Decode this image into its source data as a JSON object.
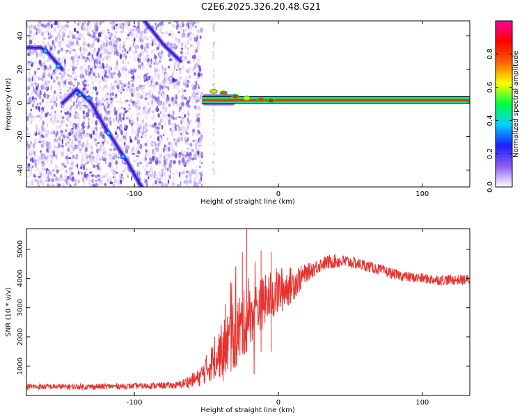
{
  "title": "C2E6.2025.326.20.48.G21",
  "colors": {
    "line": "#e8322f",
    "ridge": "#2c1fd9",
    "spectrum_bg": "#8a5cf0"
  },
  "chart_data": [
    {
      "type": "heatmap",
      "name": "spectrogram",
      "xlabel": "Height of straight line (km)",
      "ylabel": "Frequency (Hz)",
      "xlim": [
        -175,
        133
      ],
      "ylim": [
        -50,
        49
      ],
      "xticks": [
        -100,
        0,
        100
      ],
      "xtick_labels": [
        "-100",
        "0",
        "100"
      ],
      "yticks": [
        -40,
        -20,
        0,
        20,
        40
      ],
      "ytick_labels": [
        "-40",
        "-20",
        "0",
        "20",
        "40"
      ],
      "noise_region_x": [
        -175,
        -53
      ],
      "carrier": {
        "x_start": -53,
        "x_end": 133,
        "freq": 1.5
      },
      "ridges": [
        {
          "name": "falling-ridge-1",
          "points": [
            [
              -175,
              33
            ],
            [
              -165,
              33
            ],
            [
              -160,
              30
            ],
            [
              -155,
              25
            ],
            [
              -150,
              20
            ]
          ]
        },
        {
          "name": "falling-ridge-2",
          "points": [
            [
              -150,
              0
            ],
            [
              -140,
              8
            ],
            [
              -130,
              0
            ],
            [
              -120,
              -15
            ],
            [
              -105,
              -35
            ],
            [
              -95,
              -50
            ]
          ]
        },
        {
          "name": "falling-ridge-3",
          "points": [
            [
              -93,
              49
            ],
            [
              -80,
              35
            ],
            [
              -68,
              25
            ]
          ]
        }
      ],
      "colorbar": {
        "label": "Normalized spectral amplitude",
        "range": [
          0.0,
          1.0
        ],
        "ticks": [
          0.0,
          0.2,
          0.4,
          0.6,
          0.8
        ],
        "tick_labels": [
          "0.0",
          "0.2",
          "0.4",
          "0.6",
          "0.8"
        ],
        "stops": [
          "#ffffff",
          "#8a5cf0",
          "#1a20ff",
          "#00d0ff",
          "#00ff40",
          "#ffff00",
          "#ff6000",
          "#ff0000",
          "#ff00a0"
        ]
      }
    },
    {
      "type": "line",
      "name": "snr",
      "xlabel": "Height of straight line (km)",
      "ylabel": "SNR (10 * v/v)",
      "xlim": [
        -175,
        133
      ],
      "ylim": [
        0,
        5700
      ],
      "xticks": [
        -100,
        0,
        100
      ],
      "xtick_labels": [
        "-100",
        "0",
        "100"
      ],
      "yticks": [
        1000,
        2000,
        3000,
        4000,
        5000
      ],
      "ytick_labels": [
        "1000",
        "2000",
        "3000",
        "4000",
        "5000"
      ],
      "envelope": {
        "x": [
          -175,
          -130,
          -100,
          -70,
          -55,
          -50,
          -45,
          -40,
          -35,
          -30,
          -25,
          -20,
          -15,
          -10,
          -5,
          0,
          10,
          20,
          30,
          40,
          50,
          60,
          70,
          80,
          90,
          100,
          110,
          120,
          133
        ],
        "y": [
          300,
          300,
          320,
          350,
          600,
          900,
          1200,
          1500,
          1800,
          2100,
          2400,
          2700,
          3000,
          3200,
          3400,
          3550,
          3800,
          4200,
          4500,
          4600,
          4550,
          4450,
          4300,
          4150,
          4050,
          4000,
          3950,
          3950,
          3950
        ],
        "amp": [
          100,
          100,
          100,
          120,
          300,
          500,
          700,
          900,
          1100,
          1300,
          1200,
          1000,
          900,
          900,
          900,
          850,
          600,
          300,
          250,
          250,
          220,
          200,
          200,
          180,
          180,
          180,
          180,
          180,
          180
        ]
      }
    }
  ]
}
